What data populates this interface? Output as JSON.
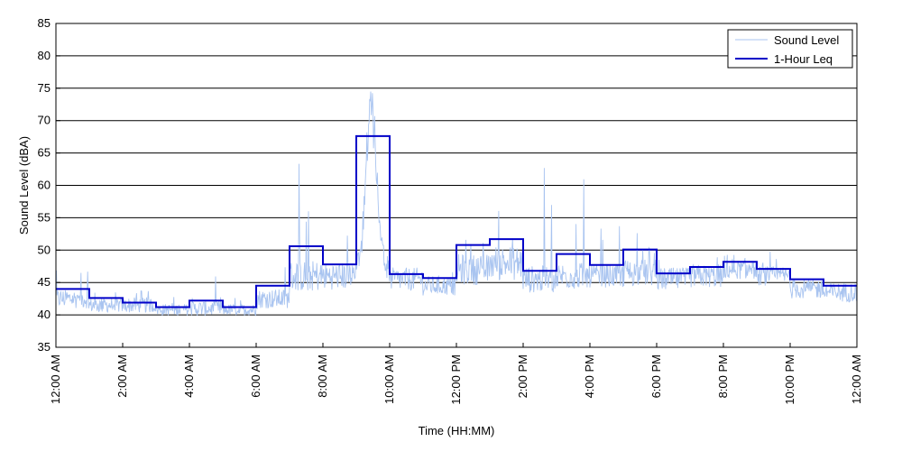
{
  "chart_data": {
    "type": "line",
    "title": "",
    "xlabel": "Time (HH:MM)",
    "ylabel": "Sound Level (dBA)",
    "ylim": [
      35,
      85
    ],
    "yticks": [
      35,
      40,
      45,
      50,
      55,
      60,
      65,
      70,
      75,
      80,
      85
    ],
    "xlim_hours": [
      0,
      24
    ],
    "xtick_labels": [
      "12:00 AM",
      "2:00 AM",
      "4:00 AM",
      "6:00 AM",
      "8:00 AM",
      "10:00 AM",
      "12:00 PM",
      "2:00 PM",
      "4:00 PM",
      "6:00 PM",
      "8:00 PM",
      "10:00 PM",
      "12:00 AM"
    ],
    "grid": "horizontal",
    "legend_position": "top-right",
    "series": [
      {
        "name": "Sound Level",
        "color": "#a9c4f0",
        "style": "thin",
        "hourly_profile": [
          {
            "hour": 0,
            "base": 42.5,
            "spread": 2.5,
            "peak": 47.5
          },
          {
            "hour": 1,
            "base": 41.5,
            "spread": 2.0,
            "peak": 46.5
          },
          {
            "hour": 2,
            "base": 41.5,
            "spread": 2.0,
            "peak": 46.5
          },
          {
            "hour": 3,
            "base": 40.8,
            "spread": 1.5,
            "peak": 44.5
          },
          {
            "hour": 4,
            "base": 41.0,
            "spread": 2.0,
            "peak": 46.0
          },
          {
            "hour": 5,
            "base": 40.8,
            "spread": 1.5,
            "peak": 44.5
          },
          {
            "hour": 6,
            "base": 42.5,
            "spread": 2.5,
            "peak": 53.0
          },
          {
            "hour": 7,
            "base": 46.0,
            "spread": 4.0,
            "peak": 65.0
          },
          {
            "hour": 8,
            "base": 46.0,
            "spread": 3.5,
            "peak": 58.0
          },
          {
            "hour": 9,
            "base": 60.0,
            "spread": 8.0,
            "peak": 76.5
          },
          {
            "hour": 10,
            "base": 45.5,
            "spread": 3.0,
            "peak": 53.0
          },
          {
            "hour": 11,
            "base": 44.5,
            "spread": 2.5,
            "peak": 50.0
          },
          {
            "hour": 12,
            "base": 47.0,
            "spread": 4.0,
            "peak": 56.0
          },
          {
            "hour": 13,
            "base": 48.0,
            "spread": 4.5,
            "peak": 57.0
          },
          {
            "hour": 14,
            "base": 45.5,
            "spread": 3.5,
            "peak": 63.5
          },
          {
            "hour": 15,
            "base": 46.0,
            "spread": 3.5,
            "peak": 63.5
          },
          {
            "hour": 16,
            "base": 46.0,
            "spread": 3.0,
            "peak": 63.0
          },
          {
            "hour": 17,
            "base": 46.5,
            "spread": 3.5,
            "peak": 56.0
          },
          {
            "hour": 18,
            "base": 45.5,
            "spread": 3.0,
            "peak": 50.5
          },
          {
            "hour": 19,
            "base": 46.0,
            "spread": 3.0,
            "peak": 52.0
          },
          {
            "hour": 20,
            "base": 47.0,
            "spread": 2.5,
            "peak": 51.5
          },
          {
            "hour": 21,
            "base": 46.0,
            "spread": 2.5,
            "peak": 50.0
          },
          {
            "hour": 22,
            "base": 44.0,
            "spread": 2.5,
            "peak": 48.0
          },
          {
            "hour": 23,
            "base": 43.5,
            "spread": 2.5,
            "peak": 47.0
          }
        ]
      },
      {
        "name": "1-Hour Leq",
        "color": "#0000c8",
        "style": "step",
        "hours": [
          0,
          1,
          2,
          3,
          4,
          5,
          6,
          7,
          8,
          9,
          10,
          11,
          12,
          13,
          14,
          15,
          16,
          17,
          18,
          19,
          20,
          21,
          22,
          23
        ],
        "values": [
          44.0,
          42.6,
          41.9,
          41.2,
          42.2,
          41.2,
          44.5,
          50.6,
          47.8,
          67.6,
          46.3,
          45.7,
          50.8,
          51.7,
          46.8,
          49.4,
          47.7,
          50.1,
          46.4,
          47.4,
          48.2,
          47.1,
          45.5,
          44.5
        ]
      }
    ]
  }
}
